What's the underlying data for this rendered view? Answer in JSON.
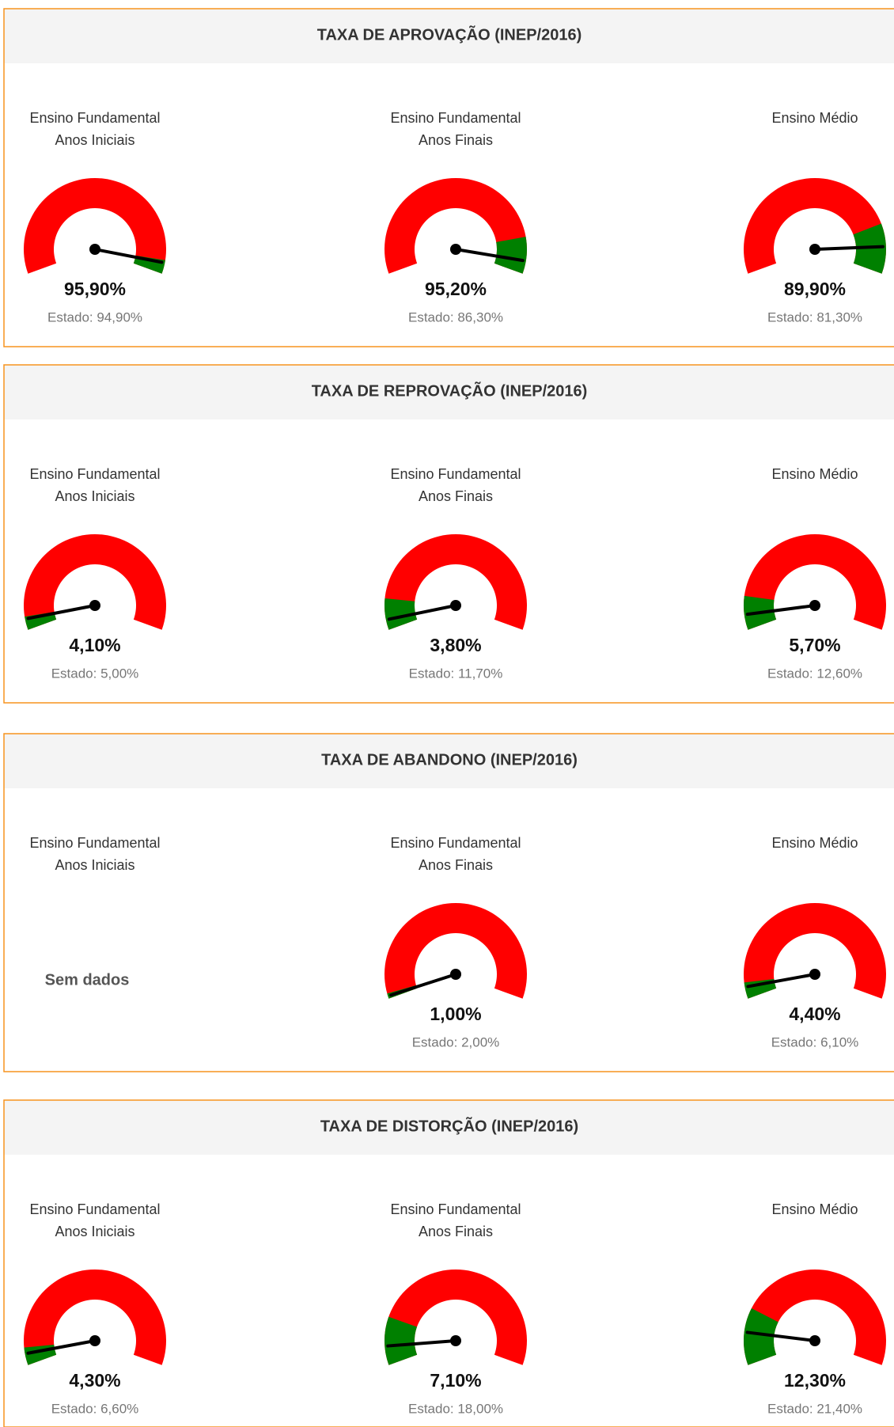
{
  "gauge_range": [
    0,
    100
  ],
  "colors": {
    "track": "#ff0000",
    "zone": "#008000",
    "needle": "#000000",
    "border": "#f7931e",
    "header": "#f4f4f4"
  },
  "panels": [
    {
      "title": "TAXA DE APROVAÇÃO (INEP/2016)",
      "green_side": "high",
      "items": [
        {
          "label": [
            "Ensino Fundamental",
            "Anos Iniciais"
          ],
          "value": 95.9,
          "value_label": "95,90%",
          "state": 94.9,
          "state_label": "Estado: 94,90%"
        },
        {
          "label": [
            "Ensino Fundamental",
            "Anos Finais"
          ],
          "value": 95.2,
          "value_label": "95,20%",
          "state": 86.3,
          "state_label": "Estado: 86,30%"
        },
        {
          "label": [
            "Ensino Médio"
          ],
          "value": 89.9,
          "value_label": "89,90%",
          "state": 81.3,
          "state_label": "Estado: 81,30%"
        }
      ]
    },
    {
      "title": "TAXA DE REPROVAÇÃO (INEP/2016)",
      "green_side": "low",
      "items": [
        {
          "label": [
            "Ensino Fundamental",
            "Anos Iniciais"
          ],
          "value": 4.1,
          "value_label": "4,10%",
          "state": 5.0,
          "state_label": "Estado: 5,00%"
        },
        {
          "label": [
            "Ensino Fundamental",
            "Anos Finais"
          ],
          "value": 3.8,
          "value_label": "3,80%",
          "state": 11.7,
          "state_label": "Estado: 11,70%"
        },
        {
          "label": [
            "Ensino Médio"
          ],
          "value": 5.7,
          "value_label": "5,70%",
          "state": 12.6,
          "state_label": "Estado: 12,60%"
        }
      ]
    },
    {
      "title": "TAXA DE ABANDONO (INEP/2016)",
      "green_side": "low",
      "items": [
        {
          "label": [
            "Ensino Fundamental",
            "Anos Iniciais"
          ],
          "note": "Sem dados"
        },
        {
          "label": [
            "Ensino Fundamental",
            "Anos Finais"
          ],
          "value": 1.0,
          "value_label": "1,00%",
          "state": 2.0,
          "state_label": "Estado: 2,00%"
        },
        {
          "label": [
            "Ensino Médio"
          ],
          "value": 4.4,
          "value_label": "4,40%",
          "state": 6.1,
          "state_label": "Estado: 6,10%"
        }
      ]
    },
    {
      "title": "TAXA DE DISTORÇÃO (INEP/2016)",
      "green_side": "low",
      "items": [
        {
          "label": [
            "Ensino Fundamental",
            "Anos Iniciais"
          ],
          "value": 4.3,
          "value_label": "4,30%",
          "state": 6.6,
          "state_label": "Estado: 6,60%"
        },
        {
          "label": [
            "Ensino Fundamental",
            "Anos Finais"
          ],
          "value": 7.1,
          "value_label": "7,10%",
          "state": 18.0,
          "state_label": "Estado: 18,00%"
        },
        {
          "label": [
            "Ensino Médio"
          ],
          "value": 12.3,
          "value_label": "12,30%",
          "state": 21.4,
          "state_label": "Estado: 21,40%"
        }
      ]
    }
  ]
}
